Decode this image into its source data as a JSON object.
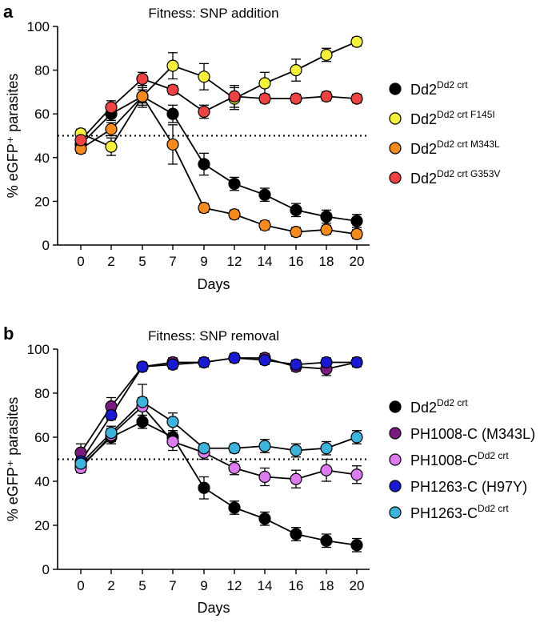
{
  "chart_data": [
    {
      "type": "line",
      "panel_label": "a",
      "title": "Fitness: SNP addition",
      "xlabel": "Days",
      "ylabel": "% eGFP⁺ parasites",
      "categories": [
        "0",
        "2",
        "5",
        "7",
        "9",
        "12",
        "14",
        "16",
        "18",
        "20"
      ],
      "ylim": [
        0,
        100
      ],
      "yticks": [
        "0",
        "20",
        "40",
        "60",
        "80",
        "100"
      ],
      "reference_line": 50,
      "series": [
        {
          "name": "Dd2",
          "superscript": "Dd2 crt",
          "color": "#000000",
          "values": [
            46,
            60,
            68,
            60,
            37,
            28,
            23,
            16,
            13,
            11
          ],
          "errors": [
            3,
            3,
            5,
            4,
            5,
            3,
            3,
            3,
            3,
            3
          ]
        },
        {
          "name": "Dd2",
          "superscript": "Dd2 crt F145I",
          "color": "#f5f03c",
          "values": [
            51,
            45,
            68,
            82,
            77,
            67,
            74,
            80,
            87,
            93
          ],
          "errors": [
            2,
            4,
            4,
            6,
            6,
            5,
            5,
            5,
            3,
            2
          ]
        },
        {
          "name": "Dd2",
          "superscript": "Dd2 crt M343L",
          "color": "#f58a1f",
          "values": [
            44,
            53,
            68,
            46,
            17,
            14,
            9,
            6,
            7,
            5
          ],
          "errors": [
            2,
            3,
            3,
            9,
            2,
            2,
            2,
            2,
            2,
            2
          ]
        },
        {
          "name": "Dd2",
          "superscript": "Dd2 crt G353V",
          "color": "#ee4343",
          "values": [
            48,
            63,
            76,
            71,
            61,
            68,
            67,
            67,
            68,
            67
          ],
          "errors": [
            2,
            3,
            3,
            2,
            3,
            5,
            2,
            2,
            2,
            2
          ]
        }
      ]
    },
    {
      "type": "line",
      "panel_label": "b",
      "title": "Fitness: SNP removal",
      "xlabel": "Days",
      "ylabel": "% eGFP⁺ parasites",
      "categories": [
        "0",
        "2",
        "5",
        "7",
        "9",
        "12",
        "14",
        "16",
        "18",
        "20"
      ],
      "ylim": [
        0,
        100
      ],
      "yticks": [
        "0",
        "20",
        "40",
        "60",
        "80",
        "100"
      ],
      "reference_line": 50,
      "series": [
        {
          "name": "Dd2",
          "superscript": "Dd2 crt",
          "color": "#000000",
          "values": [
            47,
            60,
            67,
            60,
            37,
            28,
            23,
            16,
            13,
            11
          ],
          "errors": [
            3,
            3,
            3,
            3,
            5,
            3,
            3,
            3,
            3,
            3
          ]
        },
        {
          "name": "PH1008-C (M343L)",
          "superscript": "",
          "color": "#7a1a7f",
          "values": [
            53,
            74,
            92,
            94,
            94,
            96,
            96,
            92,
            91,
            94
          ],
          "errors": [
            4,
            4,
            2,
            2,
            2,
            2,
            2,
            2,
            3,
            2
          ]
        },
        {
          "name": "PH1008-C",
          "superscript": "Dd2 crt",
          "color": "#dd7cf0",
          "values": [
            46,
            61,
            74,
            58,
            53,
            46,
            42,
            41,
            45,
            43
          ],
          "errors": [
            2,
            3,
            4,
            4,
            3,
            3,
            4,
            4,
            5,
            4
          ]
        },
        {
          "name": "PH1263-C (H97Y)",
          "superscript": "",
          "color": "#1a1ad2",
          "values": [
            49,
            70,
            92,
            93,
            94,
            96,
            95,
            93,
            94,
            94
          ],
          "errors": [
            2,
            2,
            2,
            2,
            2,
            2,
            2,
            2,
            2,
            2
          ]
        },
        {
          "name": "PH1263-C",
          "superscript": "Dd2 crt",
          "color": "#3eb4dd",
          "values": [
            48,
            62,
            76,
            67,
            55,
            55,
            56,
            54,
            55,
            60
          ],
          "errors": [
            2,
            3,
            8,
            4,
            2,
            2,
            3,
            3,
            3,
            3
          ]
        }
      ]
    }
  ]
}
